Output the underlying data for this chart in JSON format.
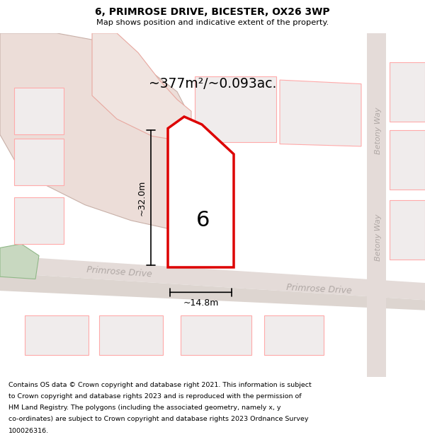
{
  "title_line1": "6, PRIMROSE DRIVE, BICESTER, OX26 3WP",
  "title_line2": "Map shows position and indicative extent of the property.",
  "area_text": "~377m²/~0.093ac.",
  "label_6": "6",
  "dim_vertical": "~32.0m",
  "dim_horizontal": "~14.8m",
  "road_label1": "Primrose Drive",
  "road_label2": "Primrose Drive",
  "betony_way": "Betony Way",
  "copyright_lines": [
    "Contains OS data © Crown copyright and database right 2021. This information is subject",
    "to Crown copyright and database rights 2023 and is reproduced with the permission of",
    "HM Land Registry. The polygons (including the associated geometry, namely x, y",
    "co-ordinates) are subject to Crown copyright and database rights 2023 Ordnance Survey",
    "100026316."
  ],
  "plot_fill": "#ffffff",
  "plot_edge": "#dd0000",
  "plot_lw": 2.5,
  "house_fill": "#d0d0d0",
  "house_edge": "#aaaaaa",
  "neighbor_fill": "#f0ecec",
  "neighbor_edge": "#ffaaaa",
  "road_fill": "#e4dbd8",
  "beige_fill": "#ecddd8",
  "green_fill": "#c8d8c0",
  "map_bg": "#ffffff",
  "title_bg": "#ffffff",
  "copyright_bg": "#ffffff"
}
